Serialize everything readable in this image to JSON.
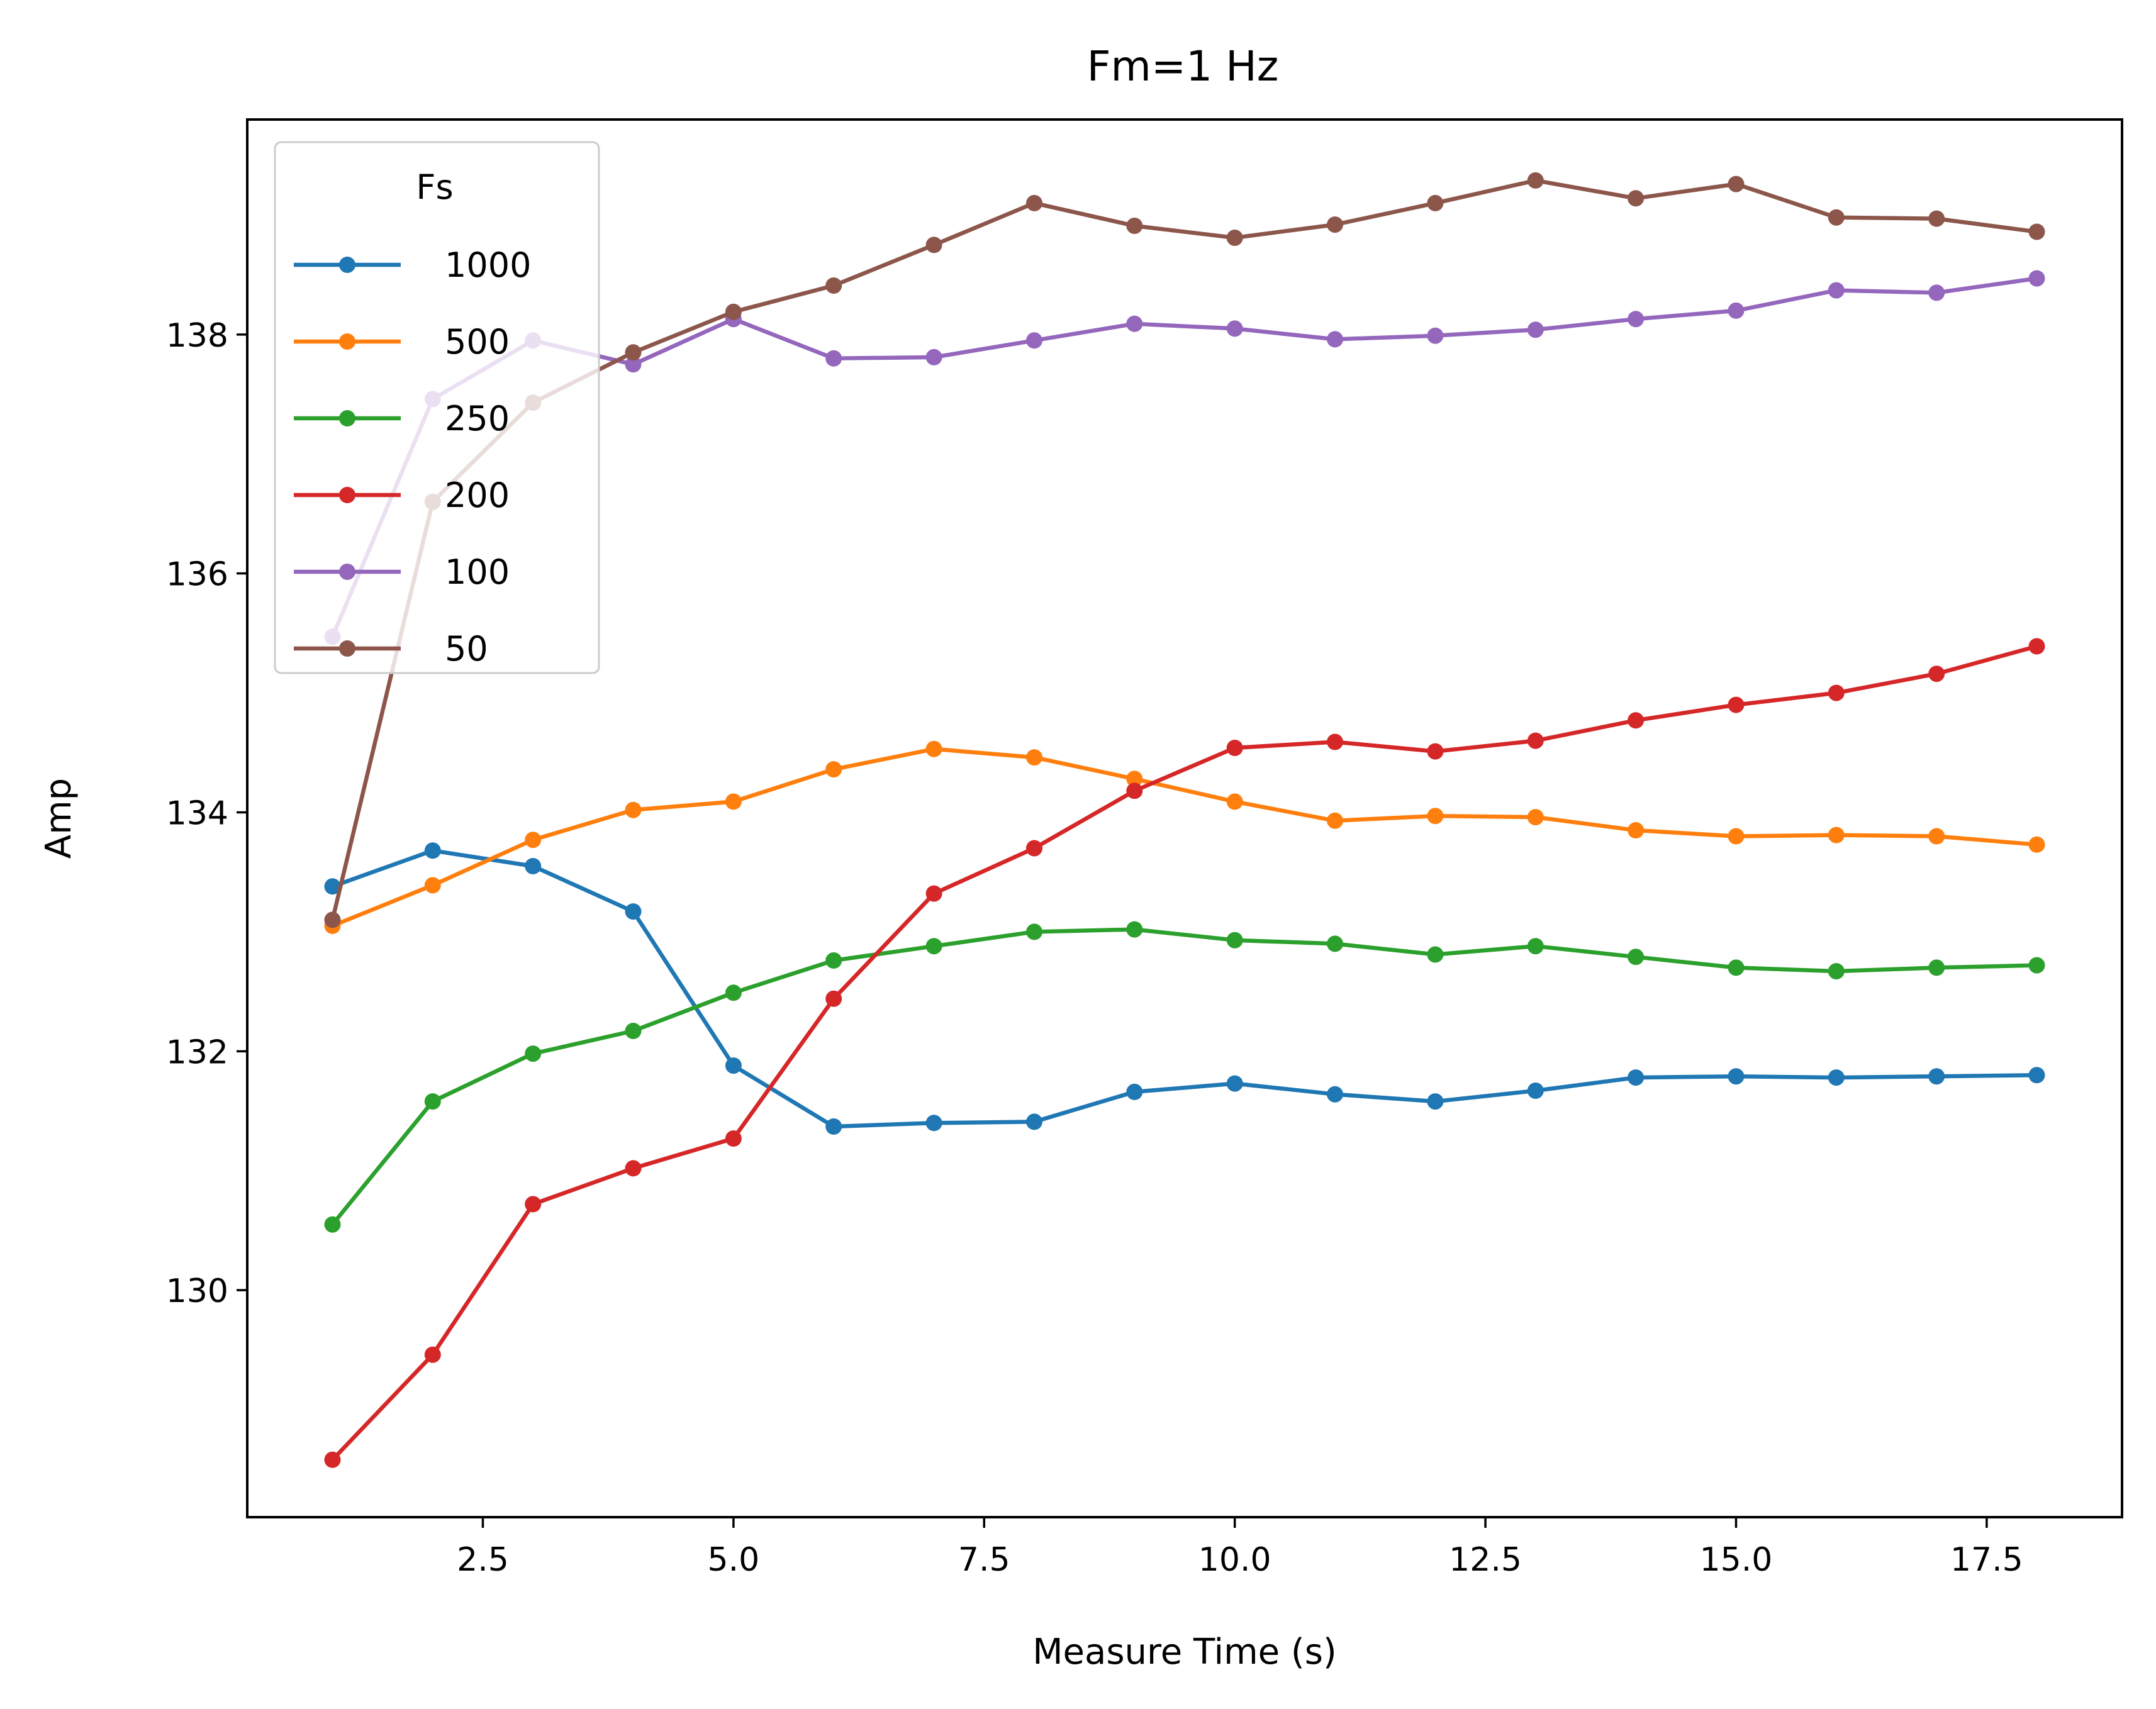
{
  "chart_data": {
    "type": "line",
    "title": "Fm=1 Hz",
    "xlabel": "Measure Time (s)",
    "ylabel": "Amp",
    "xlim": [
      0.15,
      18.85
    ],
    "ylim": [
      128.1,
      139.8
    ],
    "xticks": [
      2.5,
      5.0,
      7.5,
      10.0,
      12.5,
      15.0,
      17.5
    ],
    "xtick_labels": [
      "2.5",
      "5.0",
      "7.5",
      "10.0",
      "12.5",
      "15.0",
      "17.5"
    ],
    "yticks": [
      130,
      132,
      134,
      136,
      138
    ],
    "ytick_labels": [
      "130",
      "132",
      "134",
      "136",
      "138"
    ],
    "grid": false,
    "legend": {
      "title": "Fs",
      "placement": "upper-left"
    },
    "x": [
      1,
      2,
      3,
      4,
      5,
      6,
      7,
      8,
      9,
      10,
      11,
      12,
      13,
      14,
      15,
      16,
      17,
      18
    ],
    "series": [
      {
        "name": "1000",
        "color": "#1f77b4",
        "values": [
          133.38,
          133.68,
          133.55,
          133.17,
          131.88,
          131.37,
          131.4,
          131.41,
          131.66,
          131.73,
          131.64,
          131.58,
          131.67,
          131.78,
          131.79,
          131.78,
          131.79,
          131.8
        ]
      },
      {
        "name": "500",
        "color": "#ff7f0e",
        "values": [
          133.05,
          133.39,
          133.77,
          134.02,
          134.09,
          134.36,
          134.53,
          134.46,
          134.28,
          134.09,
          133.93,
          133.97,
          133.96,
          133.85,
          133.8,
          133.81,
          133.8,
          133.73
        ]
      },
      {
        "name": "250",
        "color": "#2ca02c",
        "values": [
          130.55,
          131.58,
          131.98,
          132.17,
          132.49,
          132.76,
          132.88,
          133.0,
          133.02,
          132.93,
          132.9,
          132.81,
          132.88,
          132.79,
          132.7,
          132.67,
          132.7,
          132.72
        ]
      },
      {
        "name": "200",
        "color": "#d62728",
        "values": [
          128.58,
          129.46,
          130.72,
          131.02,
          131.27,
          132.44,
          133.32,
          133.7,
          134.18,
          134.54,
          134.59,
          134.51,
          134.6,
          134.77,
          134.9,
          135.0,
          135.16,
          135.39
        ]
      },
      {
        "name": "100",
        "color": "#9467bd",
        "values": [
          135.47,
          137.46,
          137.95,
          137.75,
          138.13,
          137.8,
          137.81,
          137.95,
          138.09,
          138.05,
          137.96,
          137.99,
          138.04,
          138.13,
          138.2,
          138.37,
          138.35,
          138.47
        ]
      },
      {
        "name": "50",
        "color": "#8c564b",
        "values": [
          133.1,
          136.6,
          137.43,
          137.85,
          138.19,
          138.41,
          138.75,
          139.1,
          138.91,
          138.81,
          138.92,
          139.1,
          139.29,
          139.14,
          139.26,
          138.98,
          138.97,
          138.86
        ]
      }
    ]
  }
}
